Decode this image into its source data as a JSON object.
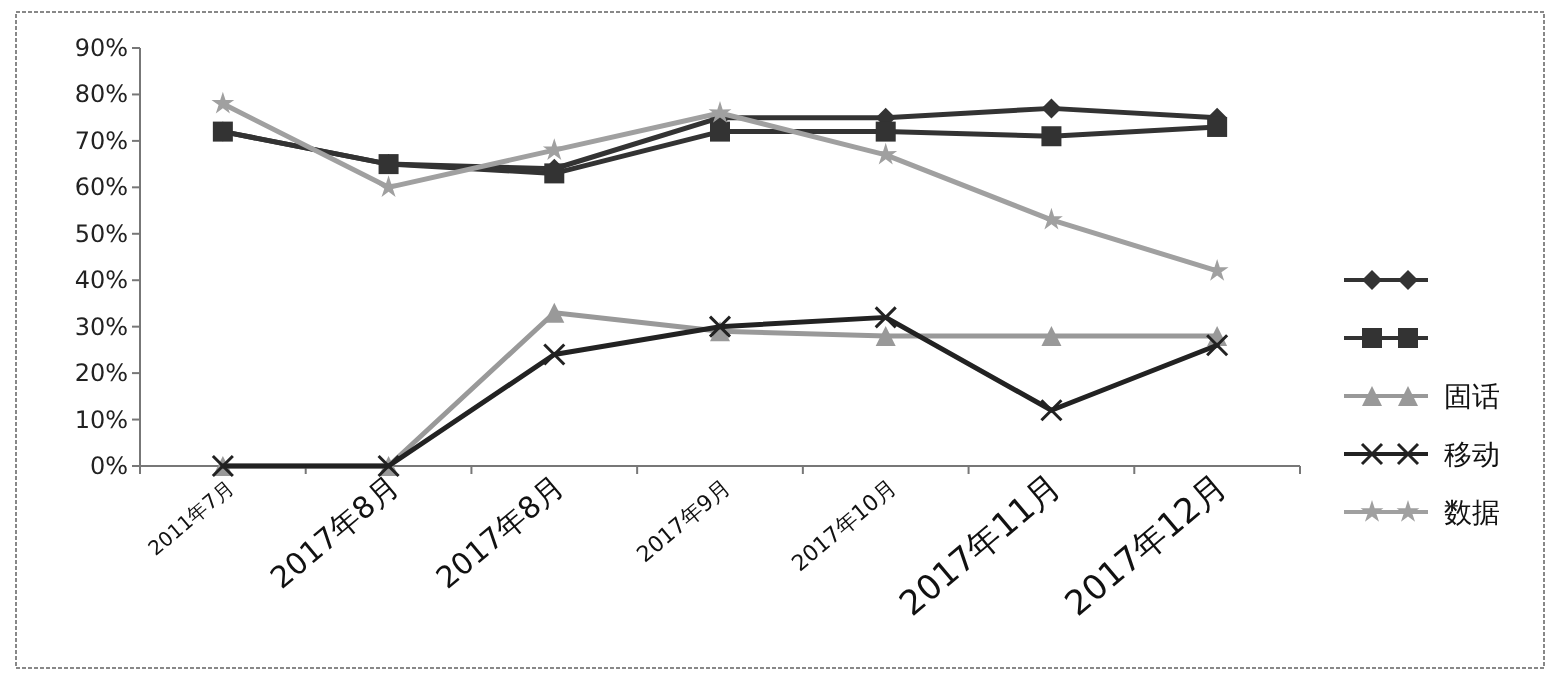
{
  "chart_data": {
    "type": "line",
    "categories": [
      "2011年7月",
      "2017年8月",
      "2017年8月",
      "2017年9月",
      "2017年10月",
      "2017年11月",
      "2017年12月"
    ],
    "series": [
      {
        "color": "#333333",
        "marker": "diamond",
        "values": [
          72,
          65,
          64,
          75,
          75,
          77,
          75
        ]
      },
      {
        "color": "#333333",
        "marker": "square",
        "values": [
          72,
          65,
          63,
          72,
          72,
          71,
          73
        ]
      },
      {
        "name": "固话",
        "color": "#999999",
        "marker": "triangle",
        "values": [
          0,
          0,
          33,
          29,
          28,
          28,
          28
        ]
      },
      {
        "name": "移动",
        "color": "#222222",
        "marker": "cross",
        "values": [
          0,
          0,
          24,
          30,
          32,
          12,
          26
        ]
      },
      {
        "name": "数据",
        "color": "#a0a0a0",
        "marker": "star",
        "values": [
          78,
          60,
          68,
          76,
          67,
          53,
          42
        ]
      }
    ],
    "ylim": [
      0,
      90
    ],
    "yticks": [
      {
        "value": 0,
        "label": "0%"
      },
      {
        "value": 10,
        "label": "10%"
      },
      {
        "value": 20,
        "label": "20%"
      },
      {
        "value": 30,
        "label": "30%"
      },
      {
        "value": 40,
        "label": "40%"
      },
      {
        "value": 50,
        "label": "50%"
      },
      {
        "value": 60,
        "label": "60%"
      },
      {
        "value": 70,
        "label": "70%"
      },
      {
        "value": 80,
        "label": "80%"
      },
      {
        "value": 90,
        "label": "90%"
      }
    ],
    "grid": false,
    "legend": "right",
    "line_style": "solid"
  }
}
